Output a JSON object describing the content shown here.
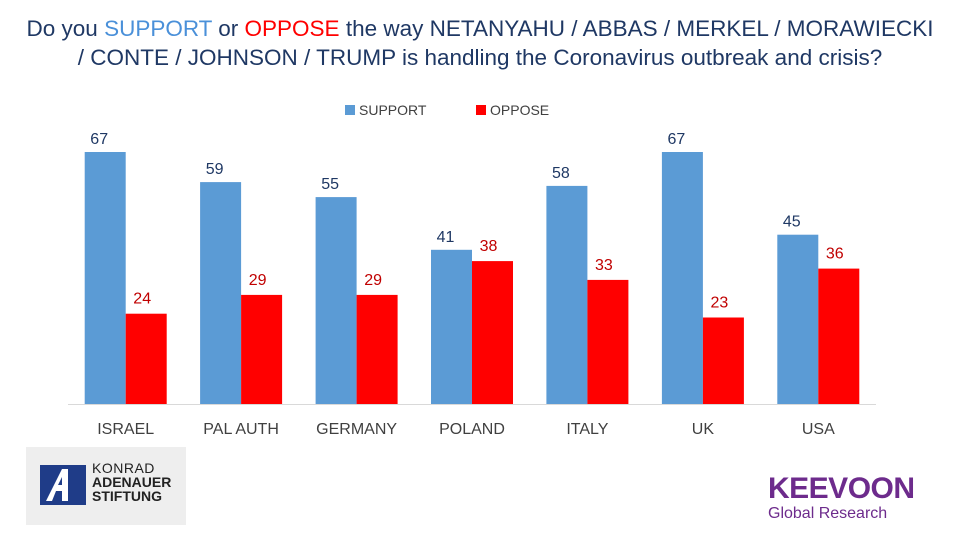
{
  "title": {
    "prefix": "Do you ",
    "support_word": "SUPPORT",
    "middle": " or ",
    "oppose_word": "OPPOSE",
    "line1_rest": " the way NETANYAHU / ABBAS / MERKEL / MORAWIECKI",
    "line2": "/ CONTE / JOHNSON / TRUMP is handling the Coronavirus outbreak and crisis?"
  },
  "legend": {
    "support_label": "SUPPORT",
    "oppose_label": "OPPOSE"
  },
  "colors": {
    "support": "#5b9bd5",
    "oppose": "#ff0000",
    "title": "#1f3864",
    "support_label_text": "#1f3864",
    "oppose_label_text": "#c00000",
    "axis_text": "#404040",
    "axis_line": "#d9d9d9"
  },
  "chart_data": {
    "type": "bar",
    "title": "Do you SUPPORT or OPPOSE the way NETANYAHU / ABBAS / MERKEL / MORAWIECKI / CONTE / JOHNSON / TRUMP is handling the Coronavirus outbreak and crisis?",
    "categories": [
      "ISRAEL",
      "PAL AUTH",
      "GERMANY",
      "POLAND",
      "ITALY",
      "UK",
      "USA"
    ],
    "series": [
      {
        "name": "SUPPORT",
        "values": [
          67,
          59,
          55,
          41,
          58,
          67,
          45
        ]
      },
      {
        "name": "OPPOSE",
        "values": [
          24,
          29,
          29,
          38,
          33,
          23,
          36
        ]
      }
    ],
    "xlabel": "",
    "ylabel": "",
    "ylim": [
      0,
      67
    ],
    "grid": false,
    "legend": "top-center"
  },
  "logos": {
    "kas_line1": "KONRAD",
    "kas_line2": "ADENAUER",
    "kas_line3": "STIFTUNG",
    "keevoon_name": "KEEVOON",
    "keevoon_sub": "Global Research"
  }
}
